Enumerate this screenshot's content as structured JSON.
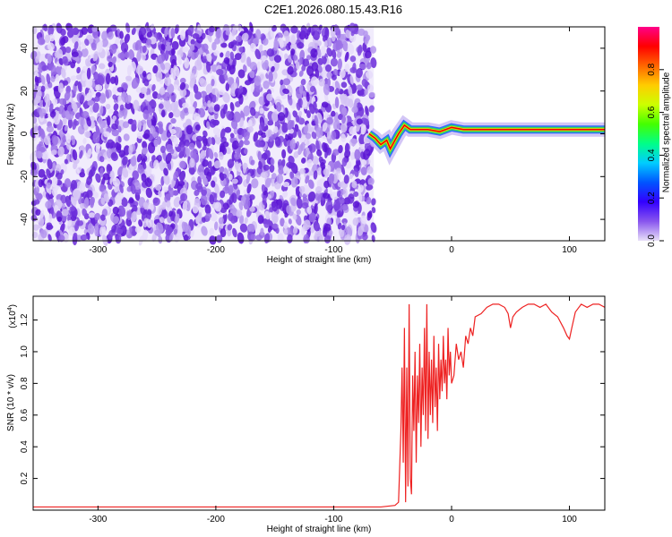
{
  "title": "C2E1.2026.080.15.43.R16",
  "chart_data": [
    {
      "type": "heatmap",
      "xlabel": "Height of straight line (km)",
      "ylabel": "Frequency (Hz)",
      "xlim": [
        -355,
        130
      ],
      "ylim": [
        -50,
        50
      ],
      "xticks": [
        "-300",
        "-200",
        "-100",
        "0",
        "100"
      ],
      "xtick_values": [
        -300,
        -200,
        -100,
        0,
        100
      ],
      "yticks": [
        "-40",
        "-20",
        "0",
        "20",
        "40"
      ],
      "ytick_values": [
        -40,
        -20,
        0,
        20,
        40
      ],
      "colorbar": {
        "label": "Normalized spectral amplitude",
        "ticks": [
          "0.0",
          "0.2",
          "0.4",
          "0.6",
          "0.8"
        ],
        "tick_values": [
          0.0,
          0.2,
          0.4,
          0.6,
          0.8
        ],
        "range": [
          0,
          1
        ],
        "colors": [
          "#e8e0f8",
          "#8855ee",
          "#3300ff",
          "#0055ff",
          "#00ccff",
          "#00ff88",
          "#44ff00",
          "#ccff00",
          "#ffcc00",
          "#ff6600",
          "#ff0000",
          "#ff0088"
        ]
      },
      "noise_region_x": [
        -355,
        -66
      ],
      "carrier_trace": {
        "x": [
          -70,
          -65,
          -60,
          -55,
          -52,
          -48,
          -45,
          -40,
          -35,
          -30,
          -20,
          -10,
          0,
          10,
          20,
          40,
          60,
          80,
          100,
          120,
          130
        ],
        "y": [
          0,
          -2,
          -5,
          -3,
          -7,
          -3,
          0,
          4,
          2,
          2,
          2,
          1,
          3,
          2,
          2,
          2,
          2,
          2,
          2,
          2,
          2
        ]
      },
      "grid": false
    },
    {
      "type": "line",
      "xlabel": "Height of straight line (km)",
      "ylabel": "SNR (10 * v/v)",
      "y_multiplier": "(x10",
      "y_multiplier_exp": "4",
      "y_multiplier_close": ")",
      "xlim": [
        -355,
        130
      ],
      "ylim": [
        0,
        1.35
      ],
      "xticks": [
        "-300",
        "-200",
        "-100",
        "0",
        "100"
      ],
      "xtick_values": [
        -300,
        -200,
        -100,
        0,
        100
      ],
      "yticks": [
        "0.2",
        "0.4",
        "0.6",
        "0.8",
        "1.0",
        "1.2"
      ],
      "ytick_values": [
        0.2,
        0.4,
        0.6,
        0.8,
        1.0,
        1.2
      ],
      "series": [
        {
          "color": "#ee2222",
          "x": [
            -355,
            -300,
            -200,
            -100,
            -60,
            -48,
            -45,
            -43,
            -42,
            -41,
            -40,
            -39,
            -38,
            -37,
            -36,
            -35,
            -34,
            -33,
            -32,
            -31,
            -30,
            -29,
            -28,
            -27,
            -26,
            -25,
            -24,
            -23,
            -22,
            -21,
            -20,
            -19,
            -18,
            -17,
            -16,
            -15,
            -14,
            -13,
            -12,
            -11,
            -10,
            -9,
            -8,
            -7,
            -6,
            -5,
            -4,
            -3,
            -2,
            -1,
            0,
            2,
            4,
            6,
            8,
            10,
            12,
            14,
            16,
            18,
            20,
            25,
            30,
            35,
            40,
            45,
            48,
            50,
            52,
            55,
            60,
            65,
            70,
            75,
            80,
            85,
            90,
            95,
            98,
            100,
            102,
            105,
            110,
            115,
            120,
            125,
            130
          ],
          "y": [
            0.02,
            0.02,
            0.02,
            0.02,
            0.02,
            0.03,
            0.05,
            0.5,
            0.9,
            0.3,
            1.15,
            0.05,
            0.9,
            0.15,
            1.3,
            0.2,
            0.1,
            0.85,
            0.5,
            1.0,
            0.3,
            0.85,
            0.55,
            1.05,
            0.4,
            0.9,
            0.6,
            1.15,
            0.5,
            1.3,
            0.45,
            1.0,
            0.6,
            0.95,
            0.55,
            1.1,
            0.65,
            0.9,
            0.5,
            1.05,
            0.7,
            0.95,
            0.75,
            1.1,
            0.8,
            0.95,
            0.7,
            1.15,
            0.85,
            1.0,
            0.8,
            0.85,
            1.05,
            0.95,
            1.0,
            0.9,
            1.1,
            1.05,
            1.15,
            1.1,
            1.22,
            1.24,
            1.28,
            1.3,
            1.3,
            1.28,
            1.24,
            1.15,
            1.22,
            1.25,
            1.28,
            1.3,
            1.3,
            1.28,
            1.3,
            1.25,
            1.22,
            1.15,
            1.1,
            1.08,
            1.15,
            1.25,
            1.3,
            1.28,
            1.3,
            1.3,
            1.28
          ]
        }
      ],
      "grid": false
    }
  ]
}
